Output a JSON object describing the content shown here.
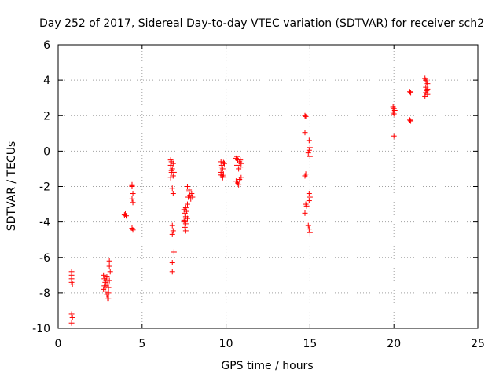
{
  "chart_data": {
    "type": "scatter",
    "title": "Day 252 of 2017, Sidereal Day-to-day VTEC variation (SDTVAR) for receiver sch2",
    "xlabel": "GPS time / hours",
    "ylabel": "SDTVAR / TECUs",
    "xlim": [
      0,
      25
    ],
    "ylim": [
      -10,
      6
    ],
    "xticks": [
      "0",
      "5",
      "10",
      "15",
      "20",
      "25"
    ],
    "yticks": [
      "-10",
      "-8",
      "-6",
      "-4",
      "-2",
      "0",
      "2",
      "4",
      "6"
    ],
    "grid": true,
    "marker": "plus",
    "color": "#ff0000",
    "series": [
      {
        "name": "SDTVAR",
        "points": [
          [
            0.8,
            -6.8
          ],
          [
            0.8,
            -7.0
          ],
          [
            0.8,
            -7.2
          ],
          [
            0.8,
            -7.4
          ],
          [
            0.85,
            -7.5
          ],
          [
            0.8,
            -9.2
          ],
          [
            0.85,
            -9.4
          ],
          [
            0.8,
            -9.7
          ],
          [
            2.7,
            -7.0
          ],
          [
            2.75,
            -7.2
          ],
          [
            2.8,
            -7.4
          ],
          [
            2.85,
            -7.6
          ],
          [
            2.7,
            -7.8
          ],
          [
            2.9,
            -7.1
          ],
          [
            2.95,
            -7.5
          ],
          [
            2.8,
            -7.9
          ],
          [
            2.9,
            -8.1
          ],
          [
            2.95,
            -8.3
          ],
          [
            3.0,
            -7.7
          ],
          [
            3.0,
            -8.0
          ],
          [
            3.05,
            -6.2
          ],
          [
            3.05,
            -6.5
          ],
          [
            3.1,
            -6.8
          ],
          [
            3.05,
            -7.3
          ],
          [
            2.75,
            -7.6
          ],
          [
            2.85,
            -7.3
          ],
          [
            3.0,
            -8.3
          ],
          [
            3.95,
            -3.6
          ],
          [
            4.0,
            -3.55
          ],
          [
            4.05,
            -3.65
          ],
          [
            4.4,
            -1.9
          ],
          [
            4.4,
            -2.0
          ],
          [
            4.45,
            -2.4
          ],
          [
            4.4,
            -2.7
          ],
          [
            4.45,
            -2.9
          ],
          [
            4.4,
            -4.35
          ],
          [
            4.45,
            -4.45
          ],
          [
            4.4,
            -1.95
          ],
          [
            6.7,
            -0.5
          ],
          [
            6.75,
            -0.6
          ],
          [
            6.7,
            -0.8
          ],
          [
            6.8,
            -1.0
          ],
          [
            6.75,
            -1.2
          ],
          [
            6.85,
            -1.4
          ],
          [
            6.7,
            -1.5
          ],
          [
            6.9,
            -1.2
          ],
          [
            6.8,
            -2.1
          ],
          [
            6.85,
            -2.4
          ],
          [
            6.8,
            -4.2
          ],
          [
            6.85,
            -4.5
          ],
          [
            6.8,
            -4.7
          ],
          [
            6.9,
            -5.7
          ],
          [
            6.8,
            -6.3
          ],
          [
            6.8,
            -6.8
          ],
          [
            6.75,
            -1.1
          ],
          [
            6.85,
            -0.7
          ],
          [
            7.5,
            -3.3
          ],
          [
            7.55,
            -3.5
          ],
          [
            7.6,
            -3.7
          ],
          [
            7.5,
            -3.9
          ],
          [
            7.6,
            -4.1
          ],
          [
            7.55,
            -4.3
          ],
          [
            7.6,
            -4.5
          ],
          [
            7.7,
            -3.0
          ],
          [
            7.75,
            -2.6
          ],
          [
            7.8,
            -2.3
          ],
          [
            7.85,
            -2.5
          ],
          [
            7.9,
            -2.7
          ],
          [
            7.7,
            -2.0
          ],
          [
            7.95,
            -2.4
          ],
          [
            8.0,
            -2.6
          ],
          [
            7.65,
            -3.4
          ],
          [
            7.7,
            -3.8
          ],
          [
            7.8,
            -2.2
          ],
          [
            7.6,
            -3.2
          ],
          [
            7.55,
            -4.0
          ],
          [
            9.7,
            -0.6
          ],
          [
            9.75,
            -0.8
          ],
          [
            9.8,
            -1.0
          ],
          [
            9.7,
            -1.2
          ],
          [
            9.8,
            -1.4
          ],
          [
            9.85,
            -1.3
          ],
          [
            9.9,
            -0.7
          ],
          [
            9.75,
            -0.9
          ],
          [
            9.8,
            -1.5
          ],
          [
            9.85,
            -0.65
          ],
          [
            9.7,
            -1.35
          ],
          [
            10.6,
            -0.4
          ],
          [
            10.7,
            -0.5
          ],
          [
            10.8,
            -0.6
          ],
          [
            10.65,
            -0.8
          ],
          [
            10.75,
            -1.0
          ],
          [
            10.85,
            -0.9
          ],
          [
            10.9,
            -0.7
          ],
          [
            10.6,
            -1.7
          ],
          [
            10.7,
            -1.8
          ],
          [
            10.8,
            -1.6
          ],
          [
            10.9,
            -1.5
          ],
          [
            10.75,
            -1.9
          ],
          [
            10.65,
            -0.3
          ],
          [
            10.85,
            -0.5
          ],
          [
            14.7,
            2.0
          ],
          [
            14.75,
            1.95
          ],
          [
            14.7,
            1.05
          ],
          [
            14.75,
            -1.3
          ],
          [
            14.7,
            -1.4
          ],
          [
            14.75,
            -3.0
          ],
          [
            14.8,
            -3.1
          ],
          [
            14.7,
            -3.5
          ],
          [
            14.95,
            0.6
          ],
          [
            15.0,
            0.2
          ],
          [
            14.95,
            0.05
          ],
          [
            14.9,
            -0.1
          ],
          [
            15.0,
            -0.3
          ],
          [
            14.95,
            -2.4
          ],
          [
            15.0,
            -2.6
          ],
          [
            14.95,
            -2.8
          ],
          [
            14.9,
            -4.2
          ],
          [
            14.95,
            -4.4
          ],
          [
            15.0,
            -4.6
          ],
          [
            19.95,
            2.5
          ],
          [
            20.0,
            2.4
          ],
          [
            19.95,
            2.2
          ],
          [
            20.0,
            2.1
          ],
          [
            20.05,
            2.3
          ],
          [
            20.0,
            0.85
          ],
          [
            20.95,
            3.35
          ],
          [
            21.0,
            3.3
          ],
          [
            20.95,
            1.75
          ],
          [
            21.0,
            1.7
          ],
          [
            21.85,
            4.1
          ],
          [
            21.9,
            4.0
          ],
          [
            21.95,
            3.9
          ],
          [
            22.0,
            3.8
          ],
          [
            21.9,
            3.6
          ],
          [
            21.95,
            3.4
          ],
          [
            22.0,
            3.2
          ],
          [
            21.85,
            3.1
          ],
          [
            22.0,
            3.5
          ],
          [
            21.9,
            3.3
          ]
        ]
      }
    ]
  }
}
